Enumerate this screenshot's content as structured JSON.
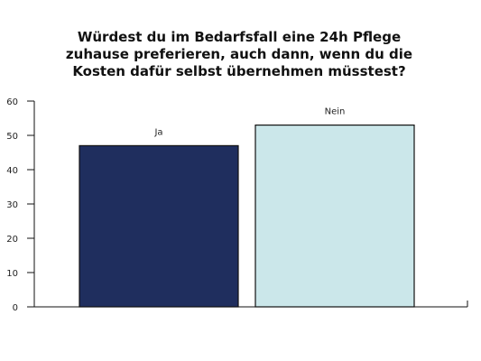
{
  "chart_data": {
    "type": "bar",
    "title_lines": [
      "Würdest du im Bedarfsfall eine 24h Pflege",
      "zuhause preferieren, auch dann, wenn du die",
      "Kosten dafür selbst übernehmen müsstest?"
    ],
    "categories": [
      "Ja",
      "Nein"
    ],
    "values": [
      47,
      53
    ],
    "colors": [
      "#1f2e5e",
      "#cbe7ea"
    ],
    "bar_outline": "#111111",
    "ylim": [
      0,
      60
    ],
    "yticks": [
      0,
      10,
      20,
      30,
      40,
      50,
      60
    ],
    "grid": false,
    "legend": "none",
    "xlabel": "",
    "ylabel": ""
  }
}
